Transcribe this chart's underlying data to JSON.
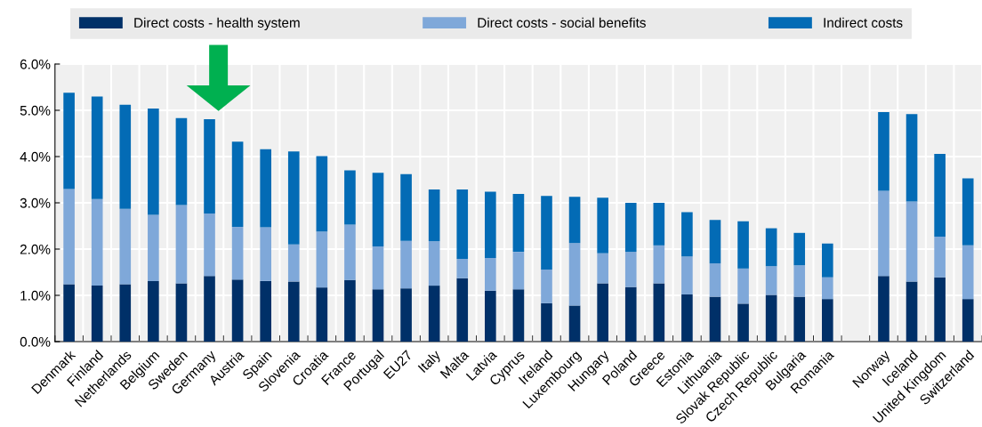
{
  "chart_data": {
    "type": "bar",
    "stacked": true,
    "categories": [
      "Denmark",
      "Finland",
      "Netherlands",
      "Belgium",
      "Sweden",
      "Germany",
      "Austria",
      "Spain",
      "Slovenia",
      "Croatia",
      "France",
      "Portugal",
      "EU27",
      "Italy",
      "Malta",
      "Latvia",
      "Cyprus",
      "Ireland",
      "Luxembourg",
      "Hungary",
      "Poland",
      "Greece",
      "Estonia",
      "Lithuania",
      "Slovak Republic",
      "Czech Republic",
      "Bulgaria",
      "Romania",
      null,
      "Norway",
      "Iceland",
      "United Kingdom",
      "Switzerland"
    ],
    "series": [
      {
        "name": "Direct costs - health system",
        "color": "#003068",
        "values": [
          1.24,
          1.21,
          1.24,
          1.31,
          1.26,
          1.42,
          1.34,
          1.31,
          1.3,
          1.17,
          1.33,
          1.13,
          1.15,
          1.21,
          1.37,
          1.1,
          1.13,
          0.83,
          0.78,
          1.26,
          1.18,
          1.26,
          1.02,
          0.97,
          0.82,
          1.01,
          0.97,
          0.92,
          null,
          1.42,
          1.3,
          1.39,
          0.92
        ]
      },
      {
        "name": "Direct costs - social benefits",
        "color": "#7fa8d9",
        "values": [
          2.06,
          1.87,
          1.63,
          1.43,
          1.69,
          1.35,
          1.14,
          1.16,
          0.8,
          1.21,
          1.2,
          0.93,
          1.03,
          0.96,
          0.42,
          0.71,
          0.81,
          0.73,
          1.35,
          0.65,
          0.76,
          0.82,
          0.82,
          0.72,
          0.76,
          0.62,
          0.68,
          0.47,
          null,
          1.84,
          1.73,
          0.88,
          1.16
        ]
      },
      {
        "name": "Indirect costs",
        "color": "#036bb5",
        "values": [
          2.08,
          2.22,
          2.25,
          2.3,
          1.88,
          2.04,
          1.84,
          1.69,
          2.01,
          1.63,
          1.17,
          1.59,
          1.44,
          1.12,
          1.5,
          1.43,
          1.25,
          1.59,
          1.0,
          1.2,
          1.06,
          0.92,
          0.96,
          0.94,
          1.02,
          0.82,
          0.7,
          0.73,
          null,
          1.7,
          1.89,
          1.79,
          1.45
        ]
      }
    ],
    "ylim": [
      0,
      6
    ],
    "yticks": [
      {
        "value": 0,
        "label": "0.0%"
      },
      {
        "value": 1,
        "label": "1.0%"
      },
      {
        "value": 2,
        "label": "2.0%"
      },
      {
        "value": 3,
        "label": "3.0%"
      },
      {
        "value": 4,
        "label": "4.0%"
      },
      {
        "value": 5,
        "label": "5.0%"
      },
      {
        "value": 6,
        "label": "6.0%"
      }
    ],
    "grid": true,
    "legend": "top"
  }
}
